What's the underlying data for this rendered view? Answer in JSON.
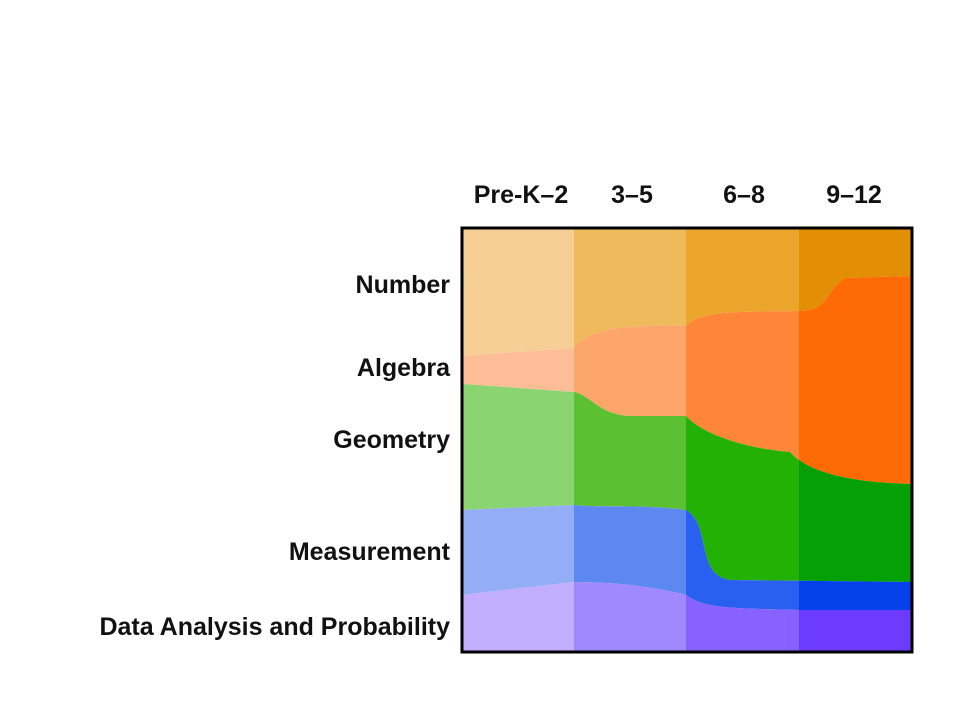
{
  "columns": [
    "Pre-K–2",
    "3–5",
    "6–8",
    "9–12"
  ],
  "rows": [
    "Number",
    "Algebra",
    "Geometry",
    "Measurement",
    "Data Analysis and Probability"
  ],
  "colors": {
    "number": [
      "#f6cf96",
      "#efba5c",
      "#eca62b",
      "#e38f05"
    ],
    "algebra": [
      "#fdbd96",
      "#fda66c",
      "#fd8639",
      "#fd6a06"
    ],
    "geometry": [
      "#8ad472",
      "#5bc032",
      "#24b106",
      "#04a005"
    ],
    "measurement": [
      "#93aef6",
      "#5d87f1",
      "#2a60f0",
      "#0541ea"
    ],
    "data": [
      "#c3aefe",
      "#a088fe",
      "#8862fe",
      "#6d3bfe"
    ],
    "frame": "#000000"
  }
}
